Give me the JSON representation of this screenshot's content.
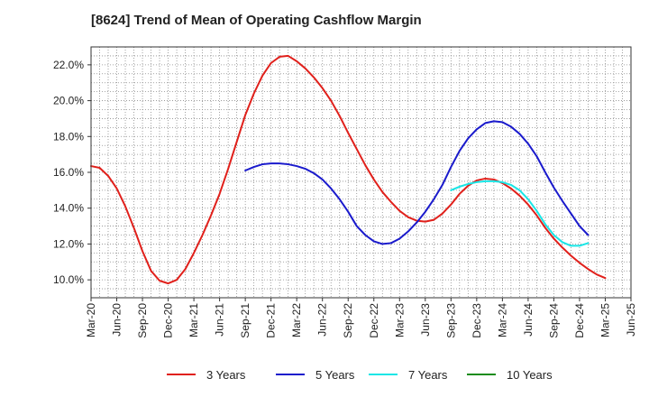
{
  "chart_data": {
    "type": "line",
    "title": "[8624]  Trend of Mean of Operating Cashflow Margin",
    "xlabel": "",
    "ylabel": "",
    "x_tick_labels": [
      "Mar-20",
      "Jun-20",
      "Sep-20",
      "Dec-20",
      "Mar-21",
      "Jun-21",
      "Sep-21",
      "Dec-21",
      "Mar-22",
      "Jun-22",
      "Sep-22",
      "Dec-22",
      "Mar-23",
      "Jun-23",
      "Sep-23",
      "Dec-23",
      "Mar-24",
      "Jun-24",
      "Sep-24",
      "Dec-24",
      "Mar-25",
      "Jun-25"
    ],
    "y_ticks": [
      "10.0%",
      "12.0%",
      "14.0%",
      "16.0%",
      "18.0%",
      "20.0%",
      "22.0%"
    ],
    "ylim": [
      9.0,
      23.0
    ],
    "xlim": [
      0,
      63
    ],
    "x_unit": "months since Mar-20",
    "grid": true,
    "legend_position": "bottom",
    "series": [
      {
        "name": "3 Years",
        "color": "#e0201b",
        "start": 0,
        "values": [
          16.35,
          16.25,
          15.8,
          15.1,
          14.1,
          12.9,
          11.6,
          10.5,
          9.95,
          9.8,
          10.0,
          10.6,
          11.5,
          12.5,
          13.6,
          14.8,
          16.2,
          17.7,
          19.2,
          20.4,
          21.4,
          22.1,
          22.45,
          22.5,
          22.2,
          21.8,
          21.3,
          20.7,
          20.0,
          19.15,
          18.2,
          17.3,
          16.4,
          15.6,
          14.9,
          14.35,
          13.85,
          13.5,
          13.3,
          13.25,
          13.35,
          13.7,
          14.2,
          14.8,
          15.25,
          15.55,
          15.65,
          15.6,
          15.4,
          15.1,
          14.7,
          14.2,
          13.6,
          12.9,
          12.3,
          11.8,
          11.35,
          10.95,
          10.6,
          10.3,
          10.1
        ]
      },
      {
        "name": "5 Years",
        "color": "#1a1acc",
        "start": 18,
        "values": [
          16.1,
          16.3,
          16.45,
          16.5,
          16.5,
          16.45,
          16.35,
          16.2,
          15.95,
          15.6,
          15.1,
          14.5,
          13.8,
          13.0,
          12.5,
          12.15,
          12.0,
          12.05,
          12.3,
          12.7,
          13.2,
          13.8,
          14.5,
          15.3,
          16.3,
          17.2,
          17.9,
          18.4,
          18.75,
          18.85,
          18.8,
          18.55,
          18.15,
          17.6,
          16.9,
          16.0,
          15.15,
          14.4,
          13.7,
          13.0,
          12.5
        ]
      },
      {
        "name": "7 Years",
        "color": "#19e6e6",
        "start": 42,
        "values": [
          15.0,
          15.2,
          15.35,
          15.45,
          15.5,
          15.5,
          15.45,
          15.3,
          15.0,
          14.5,
          13.85,
          13.1,
          12.5,
          12.1,
          11.9,
          11.9,
          12.05
        ]
      },
      {
        "name": "10 Years",
        "color": "#1a8c1a",
        "start": 0,
        "values": []
      }
    ]
  }
}
